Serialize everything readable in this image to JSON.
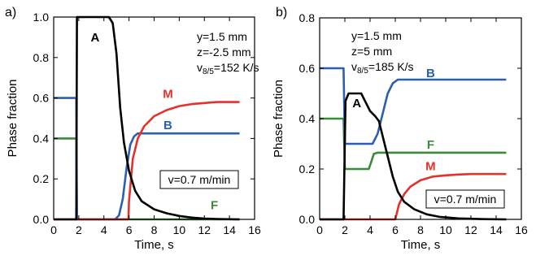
{
  "chart_data": [
    {
      "type": "line",
      "panel_label": "a)",
      "xlabel": "Time, s",
      "ylabel": "Phase fraction",
      "xlim": [
        0,
        16
      ],
      "ylim": [
        0,
        1.0
      ],
      "xticks": [
        0,
        2,
        4,
        6,
        8,
        10,
        12,
        14,
        16
      ],
      "yticks": [
        0.0,
        0.2,
        0.4,
        0.6,
        0.8,
        1.0
      ],
      "ytick_labels": [
        "0.0",
        "0.2",
        "0.4",
        "0.6",
        "0.8",
        "1.0"
      ],
      "annotations": [
        "y=1.5 mm",
        "z=-2.5 mm",
        "v8/5=152 K/s"
      ],
      "velocity_box": "v=0.7 m/min",
      "series": [
        {
          "name": "A",
          "color": "#000000",
          "points": [
            [
              0,
              0
            ],
            [
              1.8,
              0
            ],
            [
              1.85,
              1.0
            ],
            [
              4.4,
              1.0
            ],
            [
              4.7,
              0.97
            ],
            [
              5.0,
              0.82
            ],
            [
              5.3,
              0.55
            ],
            [
              5.6,
              0.38
            ],
            [
              6.0,
              0.24
            ],
            [
              6.5,
              0.14
            ],
            [
              7.0,
              0.09
            ],
            [
              8.0,
              0.05
            ],
            [
              9.0,
              0.03
            ],
            [
              10.0,
              0.017
            ],
            [
              11.0,
              0.009
            ],
            [
              12.0,
              0.004
            ],
            [
              13.0,
              0.002
            ],
            [
              14.8,
              0
            ]
          ]
        },
        {
          "name": "M",
          "color": "#e8302a",
          "points": [
            [
              0,
              0
            ],
            [
              5.95,
              0
            ],
            [
              6.0,
              0.09
            ],
            [
              6.3,
              0.3
            ],
            [
              6.7,
              0.4
            ],
            [
              7.2,
              0.46
            ],
            [
              8.0,
              0.51
            ],
            [
              9.0,
              0.54
            ],
            [
              10.0,
              0.56
            ],
            [
              11.0,
              0.57
            ],
            [
              12.0,
              0.575
            ],
            [
              13.0,
              0.58
            ],
            [
              14.8,
              0.58
            ]
          ]
        },
        {
          "name": "B",
          "color": "#2b5fb0",
          "points": [
            [
              0,
              0.6
            ],
            [
              1.8,
              0.6
            ],
            [
              1.85,
              0
            ],
            [
              4.9,
              0
            ],
            [
              5.2,
              0.02
            ],
            [
              5.5,
              0.1
            ],
            [
              5.8,
              0.25
            ],
            [
              6.1,
              0.37
            ],
            [
              6.4,
              0.41
            ],
            [
              6.7,
              0.425
            ],
            [
              14.8,
              0.425
            ]
          ]
        },
        {
          "name": "F",
          "color": "#3a8a3a",
          "points": [
            [
              0,
              0.4
            ],
            [
              1.8,
              0.4
            ],
            [
              1.85,
              0
            ],
            [
              14.8,
              0
            ]
          ]
        }
      ]
    },
    {
      "type": "line",
      "panel_label": "b)",
      "xlabel": "Time, s",
      "ylabel": "Phase fraction",
      "xlim": [
        0,
        16
      ],
      "ylim": [
        0,
        0.8
      ],
      "xticks": [
        0,
        2,
        4,
        6,
        8,
        10,
        12,
        14,
        16
      ],
      "yticks": [
        0.0,
        0.2,
        0.4,
        0.6,
        0.8
      ],
      "ytick_labels": [
        "0.0",
        "0.2",
        "0.4",
        "0.6",
        "0.8"
      ],
      "annotations": [
        "y=1.5 mm",
        "z=5 mm",
        "v8/5=185 K/s"
      ],
      "velocity_box": "v=0.7 m/min",
      "series": [
        {
          "name": "A",
          "color": "#000000",
          "points": [
            [
              0,
              0
            ],
            [
              1.9,
              0
            ],
            [
              2.05,
              0.47
            ],
            [
              2.3,
              0.5
            ],
            [
              3.3,
              0.5
            ],
            [
              3.6,
              0.47
            ],
            [
              4.0,
              0.43
            ],
            [
              4.4,
              0.41
            ],
            [
              4.7,
              0.39
            ],
            [
              5.0,
              0.33
            ],
            [
              5.4,
              0.25
            ],
            [
              5.8,
              0.17
            ],
            [
              6.2,
              0.11
            ],
            [
              6.7,
              0.07
            ],
            [
              7.5,
              0.04
            ],
            [
              8.5,
              0.02
            ],
            [
              9.5,
              0.01
            ],
            [
              11.0,
              0.004
            ],
            [
              13.0,
              0.001
            ],
            [
              14.8,
              0
            ]
          ]
        },
        {
          "name": "M",
          "color": "#e8302a",
          "points": [
            [
              0,
              0
            ],
            [
              6.0,
              0
            ],
            [
              6.3,
              0.06
            ],
            [
              6.7,
              0.1
            ],
            [
              7.2,
              0.13
            ],
            [
              8.0,
              0.155
            ],
            [
              9.0,
              0.17
            ],
            [
              10.0,
              0.175
            ],
            [
              11.0,
              0.178
            ],
            [
              12.0,
              0.18
            ],
            [
              14.8,
              0.18
            ]
          ]
        },
        {
          "name": "B",
          "color": "#2b5fb0",
          "points": [
            [
              0,
              0.6
            ],
            [
              1.9,
              0.6
            ],
            [
              2.0,
              0.3
            ],
            [
              4.2,
              0.3
            ],
            [
              4.6,
              0.34
            ],
            [
              5.0,
              0.42
            ],
            [
              5.4,
              0.5
            ],
            [
              5.8,
              0.54
            ],
            [
              6.2,
              0.555
            ],
            [
              14.8,
              0.555
            ]
          ]
        },
        {
          "name": "F",
          "color": "#3a8a3a",
          "points": [
            [
              0,
              0.4
            ],
            [
              1.9,
              0.4
            ],
            [
              2.0,
              0.2
            ],
            [
              3.9,
              0.2
            ],
            [
              4.1,
              0.23
            ],
            [
              4.3,
              0.26
            ],
            [
              4.6,
              0.265
            ],
            [
              14.8,
              0.265
            ]
          ]
        }
      ]
    }
  ]
}
